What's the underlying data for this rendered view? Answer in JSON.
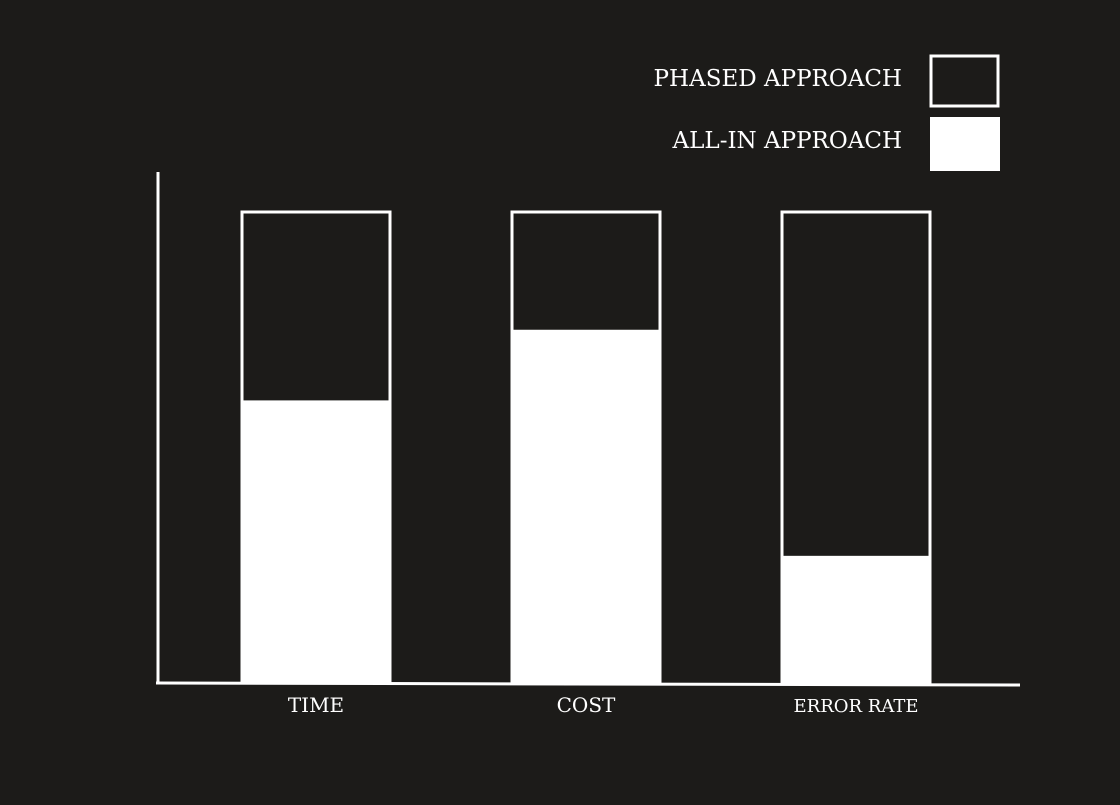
{
  "chart_data": {
    "type": "bar",
    "categories": [
      "TIME",
      "COST",
      "ERROR RATE"
    ],
    "series": [
      {
        "name": "PHASED APPROACH",
        "values": [
          100,
          100,
          100
        ],
        "style": "outline"
      },
      {
        "name": "ALL-IN APPROACH",
        "values": [
          60,
          75,
          27
        ],
        "style": "filled"
      }
    ],
    "legend": {
      "placement": "top-right"
    },
    "ylim": [
      0,
      100
    ],
    "grid": false,
    "colors": {
      "background": "#1c1b19",
      "foreground": "#ffffff"
    }
  }
}
